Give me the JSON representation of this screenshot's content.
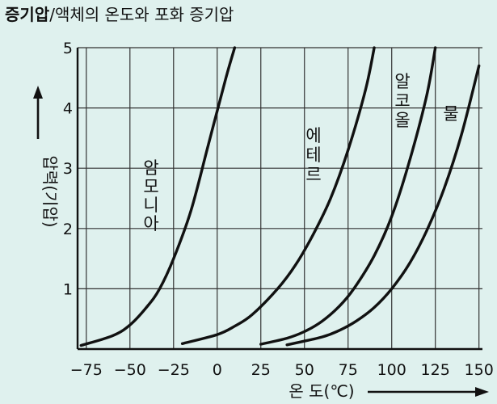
{
  "title": {
    "main": "증기압",
    "sep": "/",
    "sub": "액체의 온도와 포화 증기압"
  },
  "chart_data": {
    "type": "line",
    "xlabel": "온 도(℃)",
    "ylabel": "압력(기압)",
    "xlim": [
      -80,
      152
    ],
    "ylim": [
      0,
      5
    ],
    "xticks": [
      -75,
      -50,
      -25,
      0,
      25,
      50,
      75,
      100,
      125,
      150
    ],
    "xtick_labels": [
      "−75",
      "−50",
      "−25",
      "0",
      "25",
      "50",
      "75",
      "100",
      "125",
      "150"
    ],
    "yticks": [
      1,
      2,
      3,
      4,
      5
    ],
    "ytick_labels": [
      "1",
      "2",
      "3",
      "4",
      "5"
    ],
    "grid": true,
    "series": [
      {
        "name": "암모니아",
        "x": [
          -78,
          -60,
          -50,
          -40,
          -33,
          -25,
          -15,
          -5,
          5,
          10
        ],
        "y": [
          0.06,
          0.22,
          0.4,
          0.71,
          1.0,
          1.5,
          2.3,
          3.4,
          4.5,
          5.0
        ]
      },
      {
        "name": "에테르",
        "x": [
          -20,
          0,
          10,
          20,
          34.6,
          45,
          55,
          65,
          75,
          85,
          90
        ],
        "y": [
          0.09,
          0.24,
          0.38,
          0.57,
          1.0,
          1.4,
          1.9,
          2.5,
          3.3,
          4.3,
          5.0
        ]
      },
      {
        "name": "알코올",
        "x": [
          25,
          40,
          50,
          60,
          70,
          78.3,
          90,
          100,
          110,
          120,
          125
        ],
        "y": [
          0.08,
          0.18,
          0.29,
          0.46,
          0.71,
          1.0,
          1.55,
          2.2,
          3.1,
          4.2,
          5.0
        ]
      },
      {
        "name": "물",
        "x": [
          40,
          60,
          70,
          80,
          90,
          100,
          110,
          120,
          130,
          140,
          150
        ],
        "y": [
          0.07,
          0.2,
          0.31,
          0.47,
          0.69,
          1.0,
          1.41,
          1.96,
          2.66,
          3.56,
          4.7
        ]
      }
    ]
  }
}
